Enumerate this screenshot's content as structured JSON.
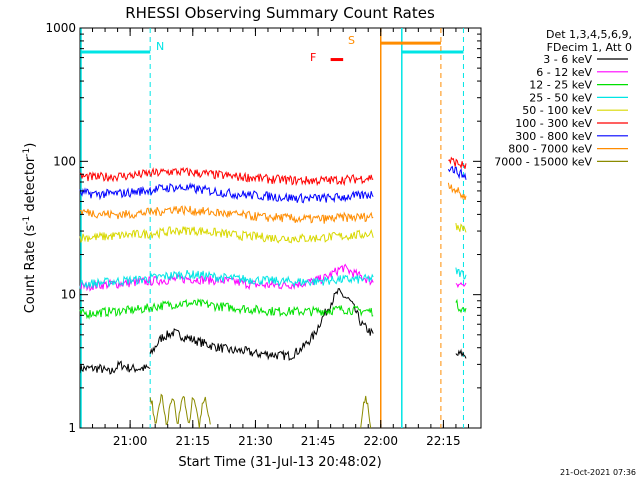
{
  "chart_data": {
    "type": "line",
    "title": "RHESSI Observing Summary Count Rates",
    "xlabel": "Start Time (31-Jul-13 20:48:02)",
    "ylabel_main": "Count Rate (s",
    "ylabel_sup1": "-1",
    "ylabel_mid": " detector",
    "ylabel_sup2": "-1",
    "ylabel_end": ")",
    "yscale": "log",
    "ylim": [
      1,
      1000
    ],
    "xlim_minutes": [
      20.8,
      22.4
    ],
    "x_ticks": [
      {
        "label": "21:00",
        "t": 21.0
      },
      {
        "label": "21:15",
        "t": 21.25
      },
      {
        "label": "21:30",
        "t": 21.5
      },
      {
        "label": "21:45",
        "t": 21.75
      },
      {
        "label": "22:00",
        "t": 22.0
      },
      {
        "label": "22:15",
        "t": 22.25
      }
    ],
    "y_ticks": [
      {
        "label": "1",
        "v": 1
      },
      {
        "label": "10",
        "v": 10
      },
      {
        "label": "100",
        "v": 100
      },
      {
        "label": "1000",
        "v": 1000
      }
    ],
    "legend": {
      "header1": "Det 1,3,4,5,6,9,",
      "header2": "FDecim 1, Att 0",
      "entries": [
        {
          "name": "3 - 6 keV",
          "color": "#000000"
        },
        {
          "name": "6 - 12 keV",
          "color": "#ff00ff"
        },
        {
          "name": "12 - 25 keV",
          "color": "#00e000"
        },
        {
          "name": "25 - 50 keV",
          "color": "#00e5e5"
        },
        {
          "name": "50 - 100 keV",
          "color": "#d8d800"
        },
        {
          "name": "100 - 300 keV",
          "color": "#ff0000"
        },
        {
          "name": "300 - 800 keV",
          "color": "#0000ff"
        },
        {
          "name": "800 - 7000 keV",
          "color": "#ff8c00"
        },
        {
          "name": "7000 - 15000 keV",
          "color": "#8b8b00"
        }
      ]
    },
    "series": [
      {
        "name": "3 - 6 keV",
        "color": "#000000",
        "segments": [
          {
            "t0": 20.8,
            "t1": 21.08,
            "values": [
              2.8,
              2.8,
              2.8,
              2.6,
              3.0,
              2.8,
              2.8,
              2.8
            ]
          },
          {
            "t0": 21.08,
            "t1": 21.97,
            "values": [
              3.5,
              4.8,
              5.2,
              4.8,
              4.5,
              4.2,
              4.0,
              3.8,
              3.8,
              3.6,
              3.6,
              3.5,
              3.5,
              4.0,
              5.0,
              7.5,
              10.5,
              9.0,
              6.0,
              5.0
            ]
          },
          {
            "t0": 22.3,
            "t1": 22.34,
            "values": [
              3.5,
              3.6,
              3.5
            ]
          }
        ]
      },
      {
        "name": "6 - 12 keV",
        "color": "#ff00ff",
        "segments": [
          {
            "t0": 20.8,
            "t1": 21.97,
            "values": [
              11.5,
              11.8,
              12.0,
              12.2,
              12.5,
              12.8,
              13.0,
              13.2,
              13.0,
              12.8,
              12.5,
              12.0,
              11.8,
              11.8,
              12.0,
              12.5,
              13.5,
              16.0,
              14.0,
              12.5
            ]
          },
          {
            "t0": 22.3,
            "t1": 22.34,
            "values": [
              12.5,
              12.0,
              11.5
            ]
          }
        ]
      },
      {
        "name": "12 - 25 keV",
        "color": "#00e000",
        "segments": [
          {
            "t0": 20.8,
            "t1": 21.97,
            "values": [
              7.2,
              7.3,
              7.5,
              7.6,
              7.8,
              8.2,
              8.5,
              8.6,
              8.5,
              8.2,
              8.0,
              7.8,
              7.6,
              7.5,
              7.5,
              7.5,
              7.6,
              7.8,
              7.6,
              7.5
            ]
          },
          {
            "t0": 22.3,
            "t1": 22.34,
            "values": [
              8.5,
              8.0,
              7.5
            ]
          }
        ]
      },
      {
        "name": "25 - 50 keV",
        "color": "#00e5e5",
        "segments": [
          {
            "t0": 20.8,
            "t1": 21.97,
            "values": [
              12.0,
              12.2,
              12.5,
              12.8,
              13.0,
              13.5,
              14.0,
              14.2,
              14.0,
              13.5,
              13.2,
              13.0,
              12.8,
              12.6,
              12.5,
              12.5,
              12.8,
              13.0,
              13.0,
              13.2
            ]
          },
          {
            "t0": 22.3,
            "t1": 22.34,
            "values": [
              15.0,
              14.5,
              14.0
            ]
          }
        ]
      },
      {
        "name": "50 - 100 keV",
        "color": "#d8d800",
        "segments": [
          {
            "t0": 20.8,
            "t1": 21.97,
            "values": [
              27,
              27,
              27.5,
              28,
              28.5,
              29,
              30,
              30.5,
              30,
              29,
              28,
              27.5,
              27,
              26.5,
              26.5,
              26.5,
              27,
              27.5,
              28,
              29
            ]
          },
          {
            "t0": 22.3,
            "t1": 22.34,
            "values": [
              33,
              32,
              31
            ]
          }
        ]
      },
      {
        "name": "100 - 300 keV",
        "color": "#ff0000",
        "segments": [
          {
            "t0": 20.8,
            "t1": 21.97,
            "values": [
              77,
              76,
              77,
              78,
              80,
              82,
              84,
              83,
              81,
              79,
              77,
              76,
              74,
              73,
              72,
              72,
              72,
              73,
              74,
              76
            ]
          },
          {
            "t0": 22.27,
            "t1": 22.34,
            "values": [
              102,
              100,
              97,
              94,
              92
            ]
          }
        ]
      },
      {
        "name": "300 - 800 keV",
        "color": "#0000ff",
        "segments": [
          {
            "t0": 20.8,
            "t1": 21.97,
            "values": [
              58,
              57,
              57,
              58,
              60,
              62,
              64,
              63,
              61,
              59,
              57,
              56,
              55,
              54,
              53,
              53,
              53,
              54,
              55,
              57
            ]
          },
          {
            "t0": 22.27,
            "t1": 22.34,
            "values": [
              92,
              88,
              84,
              80,
              77
            ]
          }
        ]
      },
      {
        "name": "800 - 7000 keV",
        "color": "#ff8c00",
        "segments": [
          {
            "t0": 20.8,
            "t1": 21.97,
            "values": [
              42,
              41,
              40,
              40,
              41,
              42,
              44,
              43,
              42,
              41,
              40,
              39,
              38,
              38,
              37,
              37,
              37,
              38,
              38,
              39
            ]
          },
          {
            "t0": 22.27,
            "t1": 22.34,
            "values": [
              68,
              64,
              60,
              56,
              53
            ]
          }
        ]
      },
      {
        "name": "7000 - 15000 keV",
        "color": "#8b8b00",
        "segments": [
          {
            "t0": 21.08,
            "t1": 21.32,
            "values": [
              1.8,
              1.0,
              1.8,
              1.0,
              1.8,
              1.0,
              1.8,
              1.0,
              1.8,
              1.0,
              1.8,
              1.0
            ]
          },
          {
            "t0": 21.92,
            "t1": 21.96,
            "values": [
              1.0,
              1.8,
              1.0
            ]
          }
        ]
      }
    ],
    "overlays": {
      "n_label": "N",
      "s_label": "S",
      "f_label": "F",
      "night": [
        {
          "t0": 20.8,
          "t1": 21.08
        },
        {
          "t0": 22.08,
          "t1": 22.33
        }
      ],
      "night_level": 660,
      "saa": {
        "t0": 22.0,
        "t1": 22.24
      },
      "saa_level": 770,
      "flare": {
        "t0": 21.8,
        "t1": 21.85,
        "level": 580
      }
    }
  },
  "footer_date": "21-Oct-2021 07:36"
}
